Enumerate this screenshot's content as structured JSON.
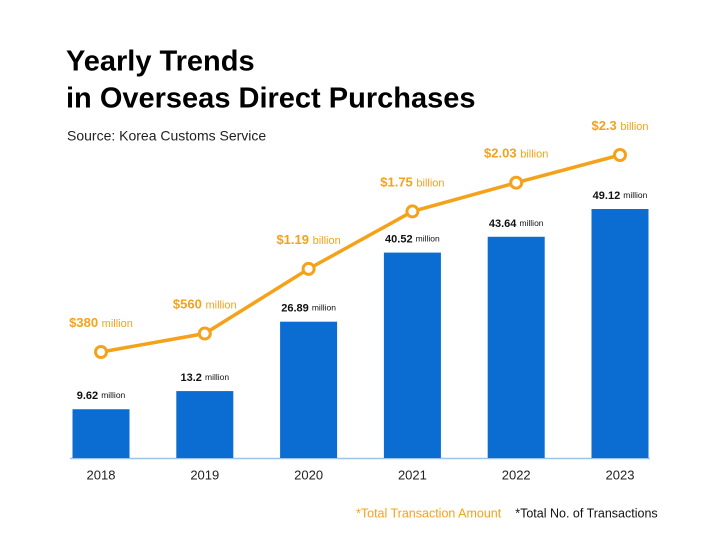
{
  "chart_data": {
    "type": "combo",
    "title": [
      "Yearly Trends",
      "in Overseas Direct Purchases"
    ],
    "subtitle": "Source: Korea Customs Service",
    "categories": [
      "2018",
      "2019",
      "2020",
      "2021",
      "2022",
      "2023"
    ],
    "series": [
      {
        "name": "*Total Transaction Amount",
        "type": "line",
        "axis": "y2",
        "color": "#f5a21b",
        "values": [
          380,
          560,
          1190,
          1750,
          2030,
          2300
        ],
        "value_labels": [
          "$380 million",
          "$560 million",
          "$1.19 billion",
          "$1.75 billion",
          "$2.03 billion",
          "$2.3 billion"
        ]
      },
      {
        "name": "*Total No. of Transactions",
        "type": "bar",
        "color": "#0b6cd1",
        "values": [
          9.62,
          13.2,
          26.89,
          40.52,
          43.64,
          49.12
        ],
        "value_labels": [
          "9.62 million",
          "13.2 million",
          "26.89 million",
          "40.52 million",
          "43.64 million",
          "49.12 million"
        ]
      }
    ]
  }
}
